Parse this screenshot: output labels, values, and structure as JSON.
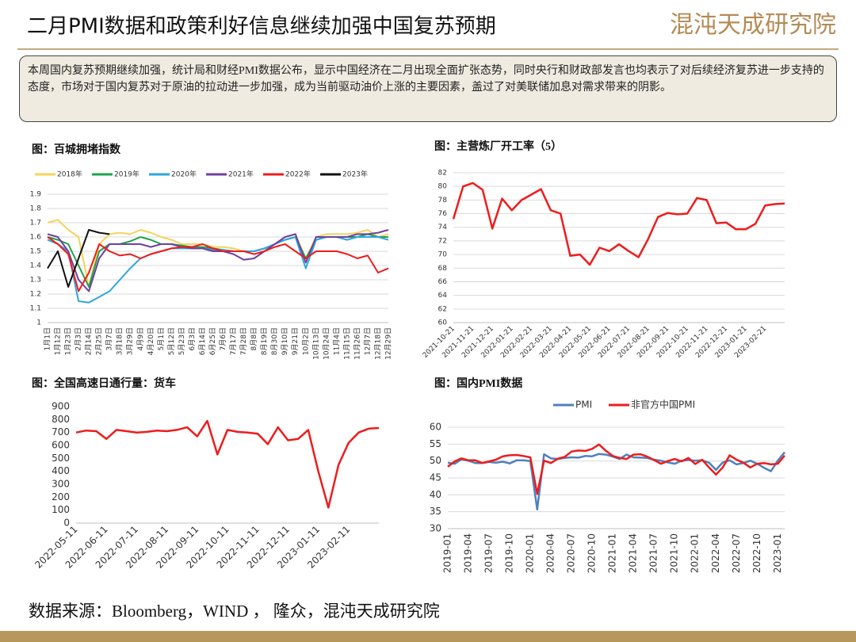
{
  "title": "二月PMI数据和政策利好信息继续加强中国复苏预期",
  "logo": "混沌天成研究院",
  "summary": "本周国内复苏预期继续加强，统计局和财经PMI数据公布，显示中国经济在二月出现全面扩张态势，同时央行和财政部发言也均表示了对后续经济复苏进一步支持的态度，市场对于国内复苏对于原油的拉动进一步加强，成为当前驱动油价上涨的主要因素，盖过了对美联储加息对需求带来的阴影。",
  "source": "数据来源：Bloomberg，WIND ， 隆众，混沌天成研究院",
  "chart_data": [
    {
      "type": "line",
      "title": "图：百城拥堵指数",
      "grid": true,
      "legend": "top",
      "categories": [
        "1月1日",
        "1月12日",
        "1月23日",
        "2月3日",
        "2月14日",
        "2月25日",
        "3月7日",
        "3月18日",
        "3月29日",
        "4月9日",
        "4月20日",
        "5月1日",
        "5月12日",
        "5月23日",
        "6月3日",
        "6月14日",
        "6月25日",
        "7月6日",
        "7月17日",
        "7月28日",
        "8月8日",
        "8月19日",
        "8月30日",
        "9月10日",
        "9月21日",
        "10月2日",
        "10月13日",
        "10月24日",
        "11月4日",
        "11月15日",
        "11月26日",
        "12月7日",
        "12月18日",
        "12月29日"
      ],
      "ylim": [
        1,
        1.9
      ],
      "yticks": [
        1,
        1.1,
        1.2,
        1.3,
        1.4,
        1.5,
        1.6,
        1.7,
        1.8,
        1.9
      ],
      "series": [
        {
          "name": "2018年",
          "color": "#f5d35c",
          "values": [
            1.7,
            1.72,
            1.65,
            1.6,
            1.25,
            1.55,
            1.62,
            1.63,
            1.62,
            1.65,
            1.63,
            1.6,
            1.58,
            1.55,
            1.55,
            1.55,
            1.53,
            1.53,
            1.52,
            1.5,
            1.5,
            1.52,
            1.55,
            1.6,
            1.62,
            1.45,
            1.6,
            1.62,
            1.62,
            1.62,
            1.63,
            1.65,
            1.6,
            1.62
          ]
        },
        {
          "name": "2019年",
          "color": "#1fa348",
          "values": [
            1.6,
            1.58,
            1.55,
            1.4,
            1.25,
            1.5,
            1.55,
            1.55,
            1.57,
            1.6,
            1.58,
            1.55,
            1.55,
            1.54,
            1.53,
            1.53,
            1.52,
            1.51,
            1.5,
            1.5,
            1.5,
            1.52,
            1.55,
            1.58,
            1.6,
            1.45,
            1.58,
            1.6,
            1.6,
            1.6,
            1.6,
            1.62,
            1.6,
            1.6
          ]
        },
        {
          "name": "2020年",
          "color": "#2ea6e0",
          "values": [
            1.58,
            1.55,
            1.5,
            1.15,
            1.14,
            1.18,
            1.22,
            1.3,
            1.38,
            1.45,
            1.48,
            1.5,
            1.52,
            1.52,
            1.52,
            1.52,
            1.51,
            1.51,
            1.5,
            1.5,
            1.5,
            1.52,
            1.55,
            1.58,
            1.6,
            1.38,
            1.58,
            1.6,
            1.6,
            1.58,
            1.6,
            1.6,
            1.6,
            1.58
          ]
        },
        {
          "name": "2021年",
          "color": "#7040a0",
          "values": [
            1.62,
            1.6,
            1.5,
            1.3,
            1.22,
            1.45,
            1.55,
            1.55,
            1.55,
            1.55,
            1.53,
            1.55,
            1.55,
            1.53,
            1.52,
            1.52,
            1.5,
            1.5,
            1.48,
            1.44,
            1.45,
            1.5,
            1.55,
            1.6,
            1.62,
            1.42,
            1.6,
            1.6,
            1.6,
            1.6,
            1.62,
            1.62,
            1.63,
            1.65
          ]
        },
        {
          "name": "2022年",
          "color": "#ee1c1c",
          "values": [
            1.6,
            1.55,
            1.48,
            1.22,
            1.35,
            1.55,
            1.5,
            1.47,
            1.48,
            1.45,
            1.48,
            1.5,
            1.52,
            1.53,
            1.53,
            1.55,
            1.52,
            1.5,
            1.5,
            1.5,
            1.48,
            1.5,
            1.53,
            1.55,
            1.5,
            1.45,
            1.5,
            1.5,
            1.5,
            1.48,
            1.45,
            1.47,
            1.35,
            1.38
          ]
        },
        {
          "name": "2023年",
          "color": "#111111",
          "values": [
            1.38,
            1.5,
            1.25,
            1.45,
            1.65,
            1.63,
            1.62,
            null,
            null,
            null,
            null,
            null,
            null,
            null,
            null,
            null,
            null,
            null,
            null,
            null,
            null,
            null,
            null,
            null,
            null,
            null,
            null,
            null,
            null,
            null,
            null,
            null,
            null,
            null
          ]
        }
      ]
    },
    {
      "type": "line",
      "title": "图：主营炼厂开工率（5）",
      "grid": true,
      "color": "#ee1c1c",
      "categories": [
        "2021-10-21",
        null,
        "2021-11-21",
        null,
        "2021-12-21",
        null,
        "2022-01-21",
        null,
        "2022-02-21",
        null,
        "2022-03-21",
        null,
        "2022-04-21",
        null,
        "2022-05-21",
        null,
        "2022-06-21",
        null,
        "2022-07-21",
        null,
        "2022-08-21",
        null,
        "2022-09-21",
        null,
        "2022-10-21",
        null,
        "2022-11-21",
        null,
        "2022-12-21",
        null,
        "2023-01-21",
        null,
        "2023-02-21",
        null,
        null
      ],
      "values": [
        75.2,
        80,
        80.5,
        79.5,
        73.8,
        78.2,
        76.5,
        78,
        78.8,
        79.6,
        76.5,
        76,
        69.8,
        70,
        68.5,
        71,
        70.5,
        71.5,
        70.5,
        69.6,
        72.3,
        75.5,
        76.1,
        75.9,
        76,
        78.3,
        78,
        74.6,
        74.7,
        73.7,
        73.7,
        74.5,
        77.2,
        77.4,
        77.5
      ],
      "ylim": [
        60,
        82
      ],
      "yticks": [
        60,
        62,
        64,
        66,
        68,
        70,
        72,
        74,
        76,
        78,
        80,
        82
      ]
    },
    {
      "type": "line",
      "title": "图：全国高速日通行量：货车",
      "grid": false,
      "color": "#ee1c1c",
      "categories": [
        "2022-05-11",
        null,
        null,
        "2022-06-11",
        null,
        null,
        "2022-07-11",
        null,
        null,
        "2022-08-11",
        null,
        null,
        "2022-09-11",
        null,
        null,
        "2022-10-11",
        null,
        null,
        "2022-11-11",
        null,
        null,
        "2022-12-11",
        null,
        null,
        "2023-01-11",
        null,
        null,
        "2023-02-11",
        null,
        null,
        null
      ],
      "values": [
        700,
        715,
        710,
        650,
        720,
        710,
        700,
        705,
        715,
        710,
        720,
        740,
        670,
        790,
        530,
        720,
        705,
        700,
        690,
        610,
        740,
        640,
        650,
        720,
        400,
        120,
        450,
        620,
        700,
        730,
        735
      ],
      "ylim": [
        0,
        900
      ],
      "yticks": [
        0,
        100,
        200,
        300,
        400,
        500,
        600,
        700,
        800,
        900
      ]
    },
    {
      "type": "line",
      "title": "图：国内PMI数据",
      "grid": true,
      "legend": "top",
      "categories": [
        "2019-01",
        null,
        null,
        "2019-04",
        null,
        null,
        "2019-07",
        null,
        null,
        "2019-10",
        null,
        null,
        "2020-01",
        null,
        null,
        "2020-04",
        null,
        null,
        "2020-07",
        null,
        null,
        "2020-10",
        null,
        null,
        "2021-01",
        null,
        null,
        "2021-04",
        null,
        null,
        "2021-07",
        null,
        null,
        "2021-10",
        null,
        null,
        "2022-01",
        null,
        null,
        "2022-04",
        null,
        null,
        "2022-07",
        null,
        null,
        "2022-10",
        null,
        null,
        "2023-01",
        null
      ],
      "ylim": [
        30,
        60
      ],
      "yticks": [
        30,
        35,
        40,
        45,
        50,
        55,
        60
      ],
      "series": [
        {
          "name": "PMI",
          "color": "#4f81bd",
          "values": [
            49.5,
            49.2,
            50.5,
            50.1,
            49.4,
            49.4,
            49.7,
            49.5,
            49.8,
            49.3,
            50.2,
            50.2,
            50.0,
            35.7,
            52.0,
            50.8,
            50.6,
            50.9,
            51.1,
            51.0,
            51.5,
            51.4,
            52.1,
            51.9,
            51.3,
            50.6,
            51.9,
            51.1,
            51.0,
            50.9,
            50.4,
            50.1,
            49.6,
            49.2,
            50.1,
            50.3,
            50.1,
            50.2,
            49.5,
            47.4,
            49.6,
            50.2,
            49.0,
            49.4,
            50.1,
            49.2,
            48.0,
            47.0,
            50.1,
            52.6
          ]
        },
        {
          "name": "非官方中国PMI",
          "color": "#ee1c1c",
          "values": [
            48.3,
            49.9,
            50.8,
            50.2,
            50.2,
            49.4,
            49.9,
            50.4,
            51.4,
            51.7,
            51.8,
            51.5,
            51.1,
            40.3,
            50.1,
            49.4,
            50.7,
            51.2,
            52.8,
            53.1,
            53.0,
            53.6,
            54.9,
            53.0,
            51.5,
            50.9,
            50.6,
            51.9,
            52.0,
            51.3,
            50.3,
            49.2,
            50.0,
            50.6,
            49.9,
            50.9,
            49.1,
            50.4,
            48.1,
            46.0,
            48.1,
            51.7,
            50.4,
            49.5,
            48.1,
            49.2,
            49.4,
            49.0,
            49.2,
            51.6
          ]
        }
      ]
    }
  ]
}
